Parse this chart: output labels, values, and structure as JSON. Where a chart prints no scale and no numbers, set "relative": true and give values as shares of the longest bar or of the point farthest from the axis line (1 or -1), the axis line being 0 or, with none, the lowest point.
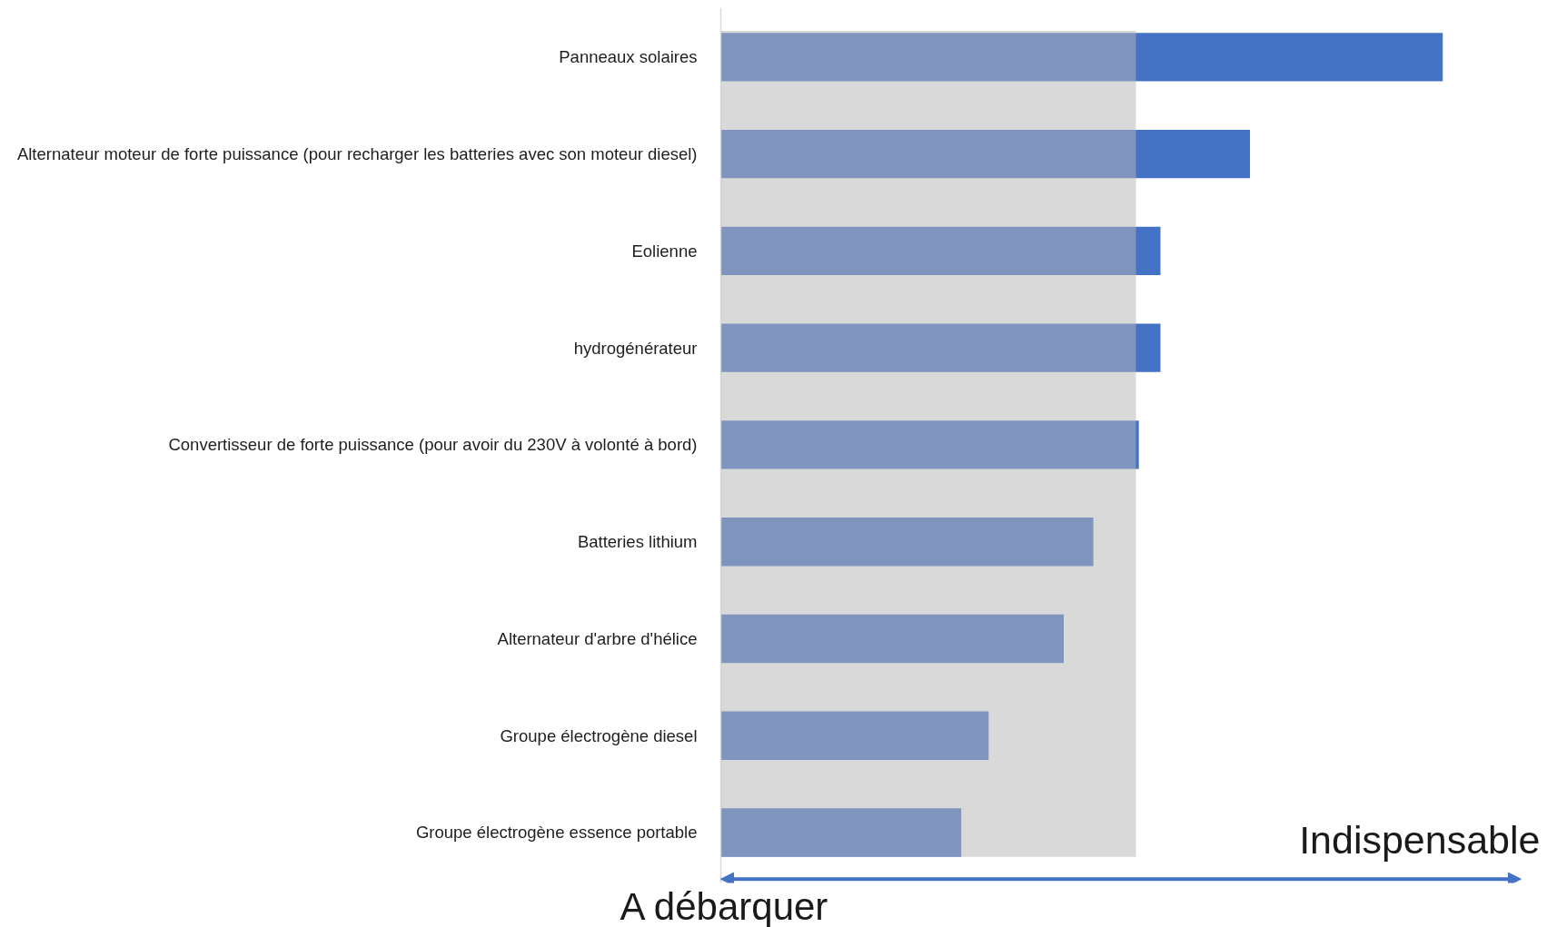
{
  "chart_data": {
    "type": "bar",
    "orientation": "horizontal",
    "relative": true,
    "categories": [
      "Panneaux solaires",
      "Alternateur moteur de forte puissance (pour recharger les batteries avec son moteur diesel)",
      "Eolienne",
      "hydrogénérateur",
      "Convertisseur de forte puissance (pour avoir du 230V à volonté à bord)",
      "Batteries lithium",
      "Alternateur d'arbre d'hélice",
      "Groupe électrogène diesel",
      "Groupe électrogène essence portable"
    ],
    "values": [
      1,
      0.733,
      0.609,
      0.609,
      0.579,
      0.516,
      0.475,
      0.371,
      0.333
    ],
    "color": "#4472c4",
    "bands": [
      {
        "axis": "x",
        "from": 0,
        "to": 0.575,
        "color": "#d9d9d9"
      }
    ],
    "annotations": [
      "A débarquer",
      "Indispensable"
    ]
  }
}
